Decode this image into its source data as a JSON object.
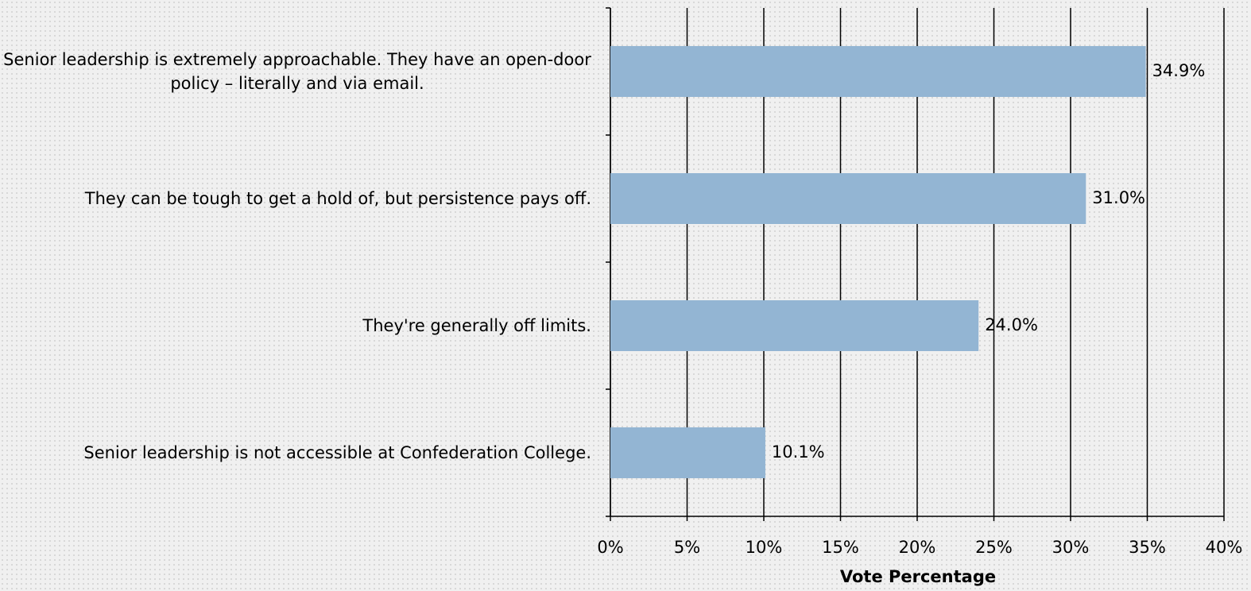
{
  "chart_data": {
    "type": "bar",
    "orientation": "horizontal",
    "x_label": "Vote Percentage",
    "categories": [
      "Senior leadership is extremely approachable. They have an open-door policy – literally and via email.",
      "They can be tough to get a hold of, but persistence pays off.",
      "They're generally off limits.",
      "Senior leadership is not accessible at Confederation College."
    ],
    "values": [
      34.9,
      31.0,
      24.0,
      10.1
    ],
    "value_labels": [
      "34.9%",
      "31.0%",
      "24.0%",
      "10.1%"
    ],
    "color": "#93b5d3",
    "xlim": [
      0,
      40
    ],
    "xticks": [
      {
        "value": 0,
        "label": "0%"
      },
      {
        "value": 5,
        "label": "5%"
      },
      {
        "value": 10,
        "label": "10%"
      },
      {
        "value": 15,
        "label": "15%"
      },
      {
        "value": 20,
        "label": "20%"
      },
      {
        "value": 25,
        "label": "25%"
      },
      {
        "value": 30,
        "label": "30%"
      },
      {
        "value": 35,
        "label": "35%"
      },
      {
        "value": 40,
        "label": "40%"
      }
    ],
    "grid": true
  }
}
